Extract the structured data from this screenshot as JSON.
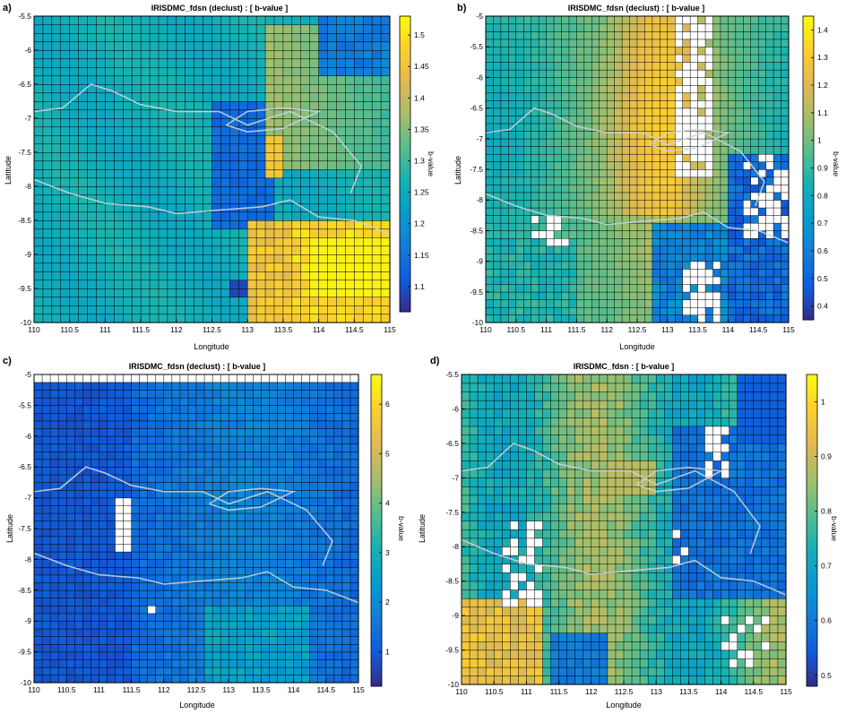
{
  "colors": {
    "colormap": "parula",
    "missing_cell": "#ffffff",
    "gridline": "#000000",
    "coastline": "#c7d2dc"
  },
  "chart_data": [
    {
      "type": "heatmap",
      "panel_label": "a)",
      "title": "IRISDMC_fdsn (declust) : [ b-value ]",
      "xlabel": "Longitude",
      "ylabel": "Latitude",
      "colorbar_label": "b-value",
      "xlim": [
        110,
        115
      ],
      "ylim": [
        -10,
        -5.5
      ],
      "xticks": [
        "110",
        "110.5",
        "111",
        "111.5",
        "112",
        "112.5",
        "113",
        "113.5",
        "114",
        "114.5",
        "115"
      ],
      "yticks": [
        "-10",
        "-9.5",
        "-9",
        "-8.5",
        "-8",
        "-7.5",
        "-7",
        "-6.5",
        "-6",
        "-5.5"
      ],
      "clim": [
        1.06,
        1.53
      ],
      "cticks": [
        "1.1",
        "1.15",
        "1.2",
        "1.25",
        "1.3",
        "1.35",
        "1.4",
        "1.45",
        "1.5"
      ],
      "grid": true,
      "field_pattern": "panelA"
    },
    {
      "type": "heatmap",
      "panel_label": "b)",
      "title": "IRISDMC_fdsn (declust) : [ b-value ]",
      "xlabel": "Longitude",
      "ylabel": "Latitude",
      "colorbar_label": "b-value",
      "xlim": [
        110,
        115
      ],
      "ylim": [
        -10,
        -5
      ],
      "xticks": [
        "110",
        "110.5",
        "111",
        "111.5",
        "112",
        "112.5",
        "113",
        "113.5",
        "114",
        "114.5",
        "115"
      ],
      "yticks": [
        "-10",
        "-9.5",
        "-9",
        "-8.5",
        "-8",
        "-7.5",
        "-7",
        "-6.5",
        "-6",
        "-5.5",
        "-5"
      ],
      "clim": [
        0.35,
        1.45
      ],
      "cticks": [
        "0.4",
        "0.5",
        "0.6",
        "0.7",
        "0.8",
        "0.9",
        "1",
        "1.1",
        "1.2",
        "1.3",
        "1.4"
      ],
      "grid": true,
      "field_pattern": "panelB"
    },
    {
      "type": "heatmap",
      "panel_label": "c)",
      "title": "IRISDMC_fdsn (declust) : [ b-value ]",
      "xlabel": "Longitude",
      "ylabel": "Latitude",
      "colorbar_label": "b-value",
      "xlim": [
        110,
        115
      ],
      "ylim": [
        -10,
        -5
      ],
      "xticks": [
        "110",
        "110.5",
        "111",
        "111.5",
        "112",
        "112.5",
        "113",
        "113.5",
        "114",
        "114.5",
        "115"
      ],
      "yticks": [
        "-10",
        "-9.5",
        "-9",
        "-8.5",
        "-8",
        "-7.5",
        "-7",
        "-6.5",
        "-6",
        "-5.5",
        "-5"
      ],
      "clim": [
        0.3,
        6.6
      ],
      "cticks": [
        "1",
        "2",
        "3",
        "4",
        "5",
        "6"
      ],
      "grid": true,
      "field_pattern": "panelC"
    },
    {
      "type": "heatmap",
      "panel_label": "d)",
      "title": "IRISDMC_fdsn : [ b-value ]",
      "xlabel": "Longitude",
      "ylabel": "Latitude",
      "colorbar_label": "b-value",
      "xlim": [
        110,
        115
      ],
      "ylim": [
        -10,
        -5.5
      ],
      "xticks": [
        "110",
        "110.5",
        "111",
        "111.5",
        "112",
        "112.5",
        "113",
        "113.5",
        "114",
        "114.5",
        "115"
      ],
      "yticks": [
        "-10",
        "-9.5",
        "-9",
        "-8.5",
        "-8",
        "-7.5",
        "-7",
        "-6.5",
        "-6",
        "-5.5"
      ],
      "clim": [
        0.48,
        1.05
      ],
      "cticks": [
        "0.5",
        "0.6",
        "0.7",
        "0.8",
        "0.9",
        "1"
      ],
      "grid": true,
      "field_pattern": "panelD"
    }
  ]
}
